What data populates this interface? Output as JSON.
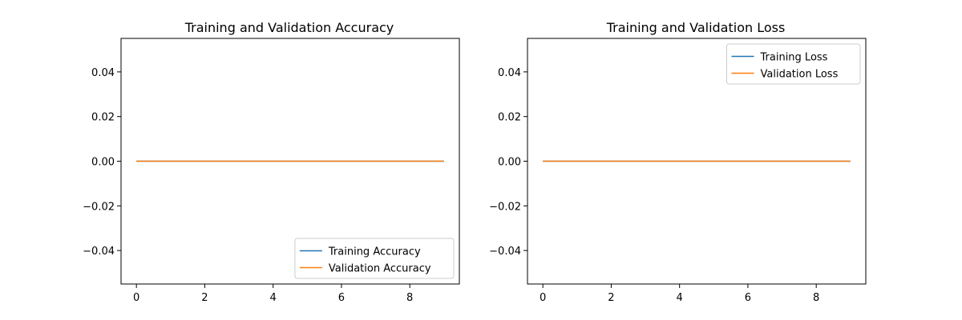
{
  "chart_data": [
    {
      "type": "line",
      "title": "Training and Validation Accuracy",
      "xlabel": "",
      "ylabel": "",
      "x": [
        0,
        1,
        2,
        3,
        4,
        5,
        6,
        7,
        8,
        9
      ],
      "xlim": [
        -0.45,
        9.45
      ],
      "ylim": [
        -0.055,
        0.055
      ],
      "x_ticks": [
        0,
        2,
        4,
        6,
        8
      ],
      "y_ticks": [
        -0.04,
        -0.02,
        0.0,
        0.02,
        0.04
      ],
      "x_tick_labels": [
        "0",
        "2",
        "4",
        "6",
        "8"
      ],
      "y_tick_labels": [
        "−0.04",
        "−0.02",
        "0.00",
        "0.02",
        "0.04"
      ],
      "grid": false,
      "legend_position": "bottom-right",
      "series": [
        {
          "name": "Training Accuracy",
          "color": "#1f77b4",
          "values": [
            0,
            0,
            0,
            0,
            0,
            0,
            0,
            0,
            0,
            0
          ]
        },
        {
          "name": "Validation Accuracy",
          "color": "#ff7f0e",
          "values": [
            0,
            0,
            0,
            0,
            0,
            0,
            0,
            0,
            0,
            0
          ]
        }
      ]
    },
    {
      "type": "line",
      "title": "Training and Validation Loss",
      "xlabel": "",
      "ylabel": "",
      "x": [
        0,
        1,
        2,
        3,
        4,
        5,
        6,
        7,
        8,
        9
      ],
      "xlim": [
        -0.45,
        9.45
      ],
      "ylim": [
        -0.055,
        0.055
      ],
      "x_ticks": [
        0,
        2,
        4,
        6,
        8
      ],
      "y_ticks": [
        -0.04,
        -0.02,
        0.0,
        0.02,
        0.04
      ],
      "x_tick_labels": [
        "0",
        "2",
        "4",
        "6",
        "8"
      ],
      "y_tick_labels": [
        "−0.04",
        "−0.02",
        "0.00",
        "0.02",
        "0.04"
      ],
      "grid": false,
      "legend_position": "top-right",
      "series": [
        {
          "name": "Training Loss",
          "color": "#1f77b4",
          "values": [
            0,
            0,
            0,
            0,
            0,
            0,
            0,
            0,
            0,
            0
          ]
        },
        {
          "name": "Validation Loss",
          "color": "#ff7f0e",
          "values": [
            0,
            0,
            0,
            0,
            0,
            0,
            0,
            0,
            0,
            0
          ]
        }
      ]
    }
  ]
}
